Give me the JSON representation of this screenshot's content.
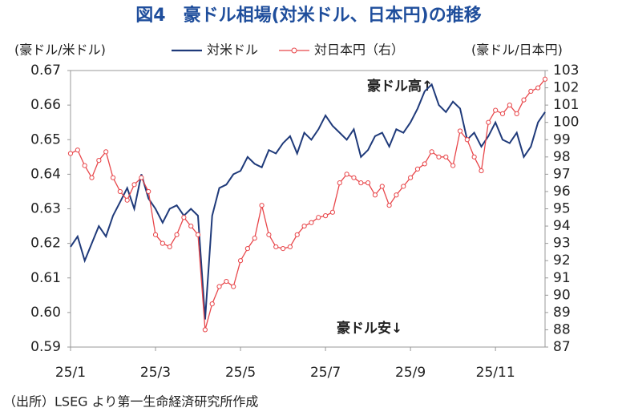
{
  "chart_data": {
    "type": "line",
    "title": "図4　豪ドル相場(対米ドル、日本円)の推移",
    "y_label": "(豪ドル/米ドル)",
    "y2_label": "(豪ドル/日本円)",
    "annotations": [
      "豪ドル高↑",
      "豪ドル安↓"
    ],
    "source": "（出所）LSEG より第一生命経済研究所作成",
    "categories": [
      "25/1",
      null,
      null,
      null,
      null,
      null,
      null,
      null,
      null,
      null,
      null,
      null,
      "25/3",
      null,
      null,
      null,
      null,
      null,
      null,
      null,
      null,
      null,
      null,
      null,
      "25/5",
      null,
      null,
      null,
      null,
      null,
      null,
      null,
      null,
      null,
      null,
      null,
      "25/7",
      null,
      null,
      null,
      null,
      null,
      null,
      null,
      null,
      null,
      null,
      null,
      "25/9",
      null,
      null,
      null,
      null,
      null,
      null,
      null,
      null,
      null,
      null,
      null,
      "25/11",
      null,
      null,
      null,
      null,
      null,
      null,
      null
    ],
    "series": [
      {
        "name": "対米ドル",
        "color": "#1f3a7a",
        "markers": false,
        "values": [
          0.619,
          0.622,
          0.615,
          0.62,
          0.625,
          0.622,
          0.628,
          0.632,
          0.636,
          0.63,
          0.64,
          0.633,
          0.63,
          0.626,
          0.63,
          0.631,
          0.628,
          0.63,
          0.628,
          0.598,
          0.628,
          0.636,
          0.637,
          0.64,
          0.641,
          0.645,
          0.643,
          0.642,
          0.647,
          0.646,
          0.649,
          0.651,
          0.646,
          0.652,
          0.65,
          0.653,
          0.657,
          0.654,
          0.652,
          0.65,
          0.653,
          0.645,
          0.647,
          0.651,
          0.652,
          0.648,
          0.653,
          0.652,
          0.655,
          0.659,
          0.664,
          0.666,
          0.66,
          0.658,
          0.661,
          0.659,
          0.65,
          0.652,
          0.648,
          0.651,
          0.655,
          0.65,
          0.649,
          0.652,
          0.645,
          0.648,
          0.655,
          0.658
        ]
      },
      {
        "name": "対日本円（右）",
        "color": "#e8474b",
        "markers": true,
        "axis": "y2",
        "values": [
          98.2,
          98.4,
          97.5,
          96.8,
          97.8,
          98.3,
          96.8,
          96.0,
          95.5,
          96.4,
          96.8,
          96.0,
          93.5,
          93.0,
          92.8,
          93.5,
          94.5,
          94.0,
          93.5,
          88.0,
          89.5,
          90.5,
          90.8,
          90.5,
          92.0,
          92.7,
          93.3,
          95.2,
          93.5,
          92.8,
          92.7,
          92.8,
          93.5,
          94.0,
          94.2,
          94.5,
          94.6,
          94.8,
          96.5,
          97.0,
          96.8,
          96.5,
          96.5,
          95.8,
          96.3,
          95.2,
          95.8,
          96.3,
          96.8,
          97.3,
          97.6,
          98.3,
          98.0,
          98.0,
          97.5,
          99.5,
          99.0,
          98.0,
          97.2,
          100.0,
          100.7,
          100.5,
          101.0,
          100.5,
          101.3,
          101.8,
          102.0,
          102.5
        ]
      }
    ],
    "ylim": [
      0.59,
      0.67
    ],
    "yticks": [
      0.59,
      {
        "value": 0.6,
        "label": "0.60"
      },
      0.61,
      0.62,
      0.63,
      0.64,
      0.65,
      0.66,
      0.67
    ],
    "y2lim": [
      87,
      103
    ],
    "y2ticks": [
      87,
      88,
      89,
      90,
      91,
      92,
      93,
      94,
      95,
      96,
      97,
      98,
      99,
      100,
      101,
      102,
      103
    ],
    "grid": false
  }
}
